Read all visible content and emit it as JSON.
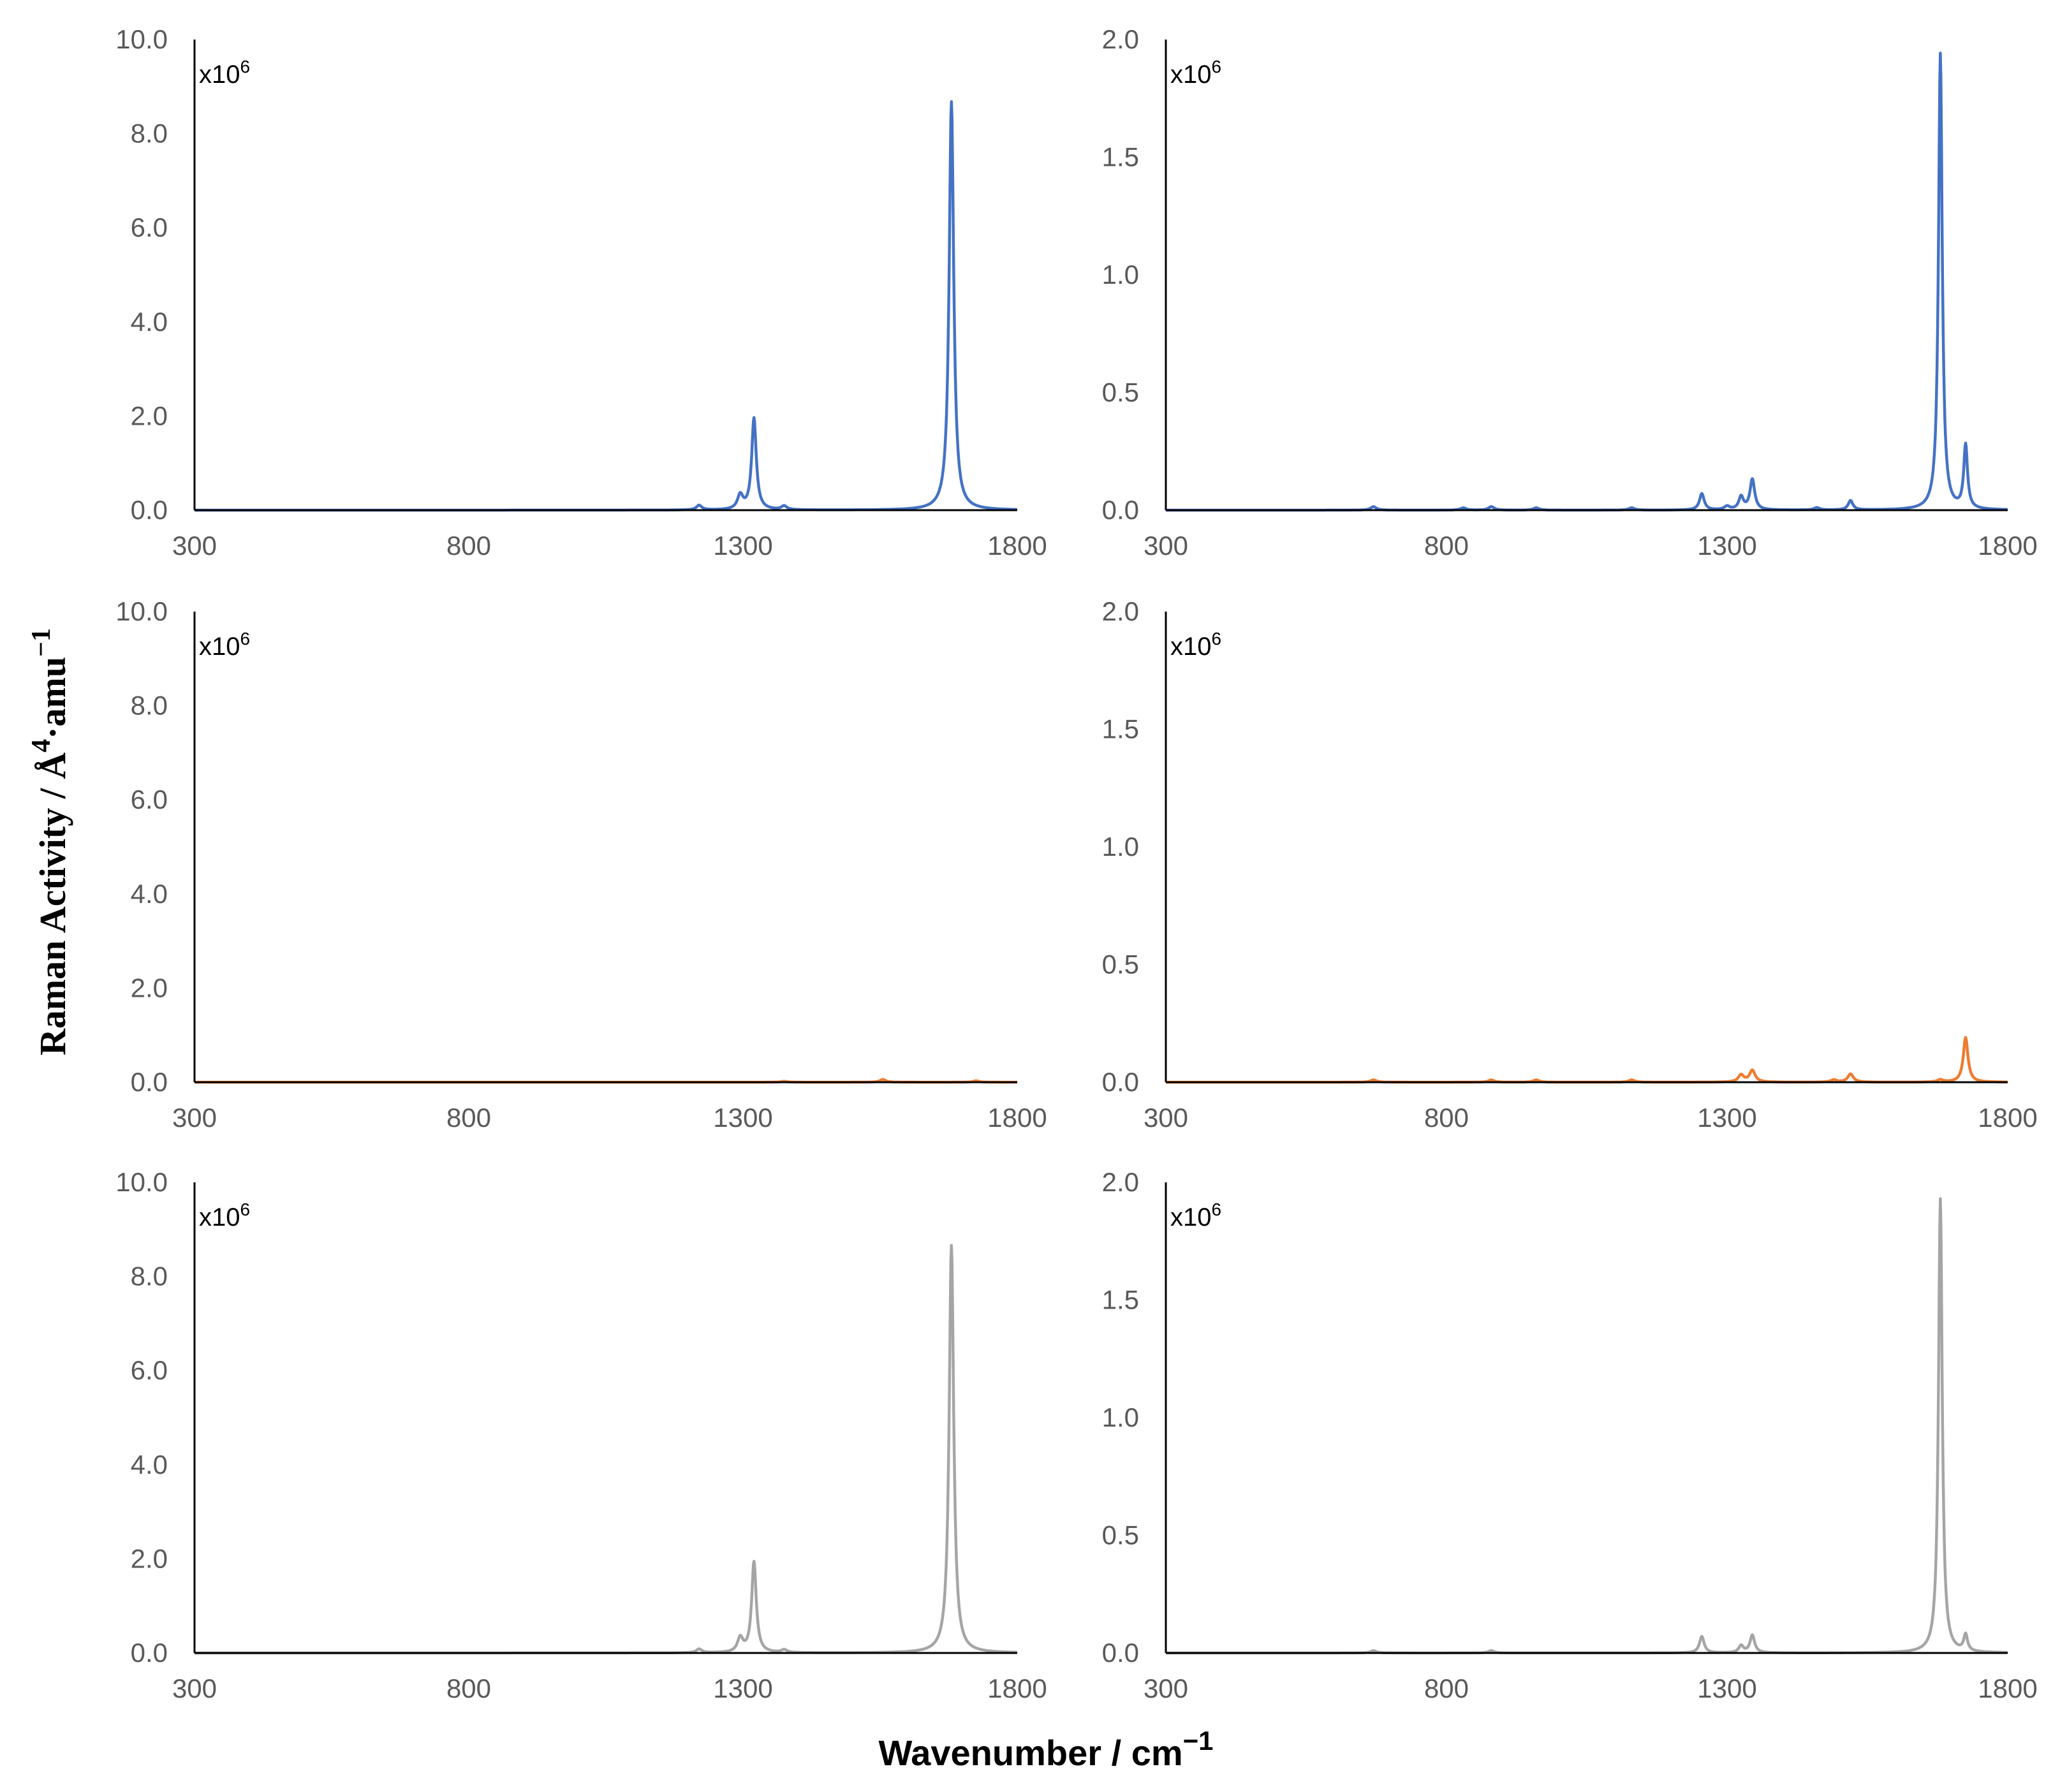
{
  "figure": {
    "xlabel": "Wavenumber / cm",
    "xlabel_exp": "−1",
    "ylabel": "Raman Activity / Å",
    "ylabel_exp1": "4",
    "ylabel_mid": "·amu",
    "ylabel_exp2": "−1",
    "multiplier_base": "x10",
    "multiplier_exp": "6"
  },
  "chart_data": [
    {
      "type": "line",
      "panel": "row1-left",
      "color": "#4472C4",
      "xlim": [
        300,
        1800
      ],
      "ylim": [
        0,
        10
      ],
      "x_ticks": [
        "300",
        "800",
        "1300",
        "1800"
      ],
      "y_ticks": [
        "0.0",
        "2.0",
        "4.0",
        "6.0",
        "8.0",
        "10.0"
      ],
      "scale_label": "x10^6",
      "peaks": [
        [
          1220,
          0.1,
          6
        ],
        [
          1295,
          0.3,
          6
        ],
        [
          1320,
          1.95,
          5
        ],
        [
          1375,
          0.08,
          6
        ],
        [
          1680,
          8.68,
          5
        ]
      ]
    },
    {
      "type": "line",
      "panel": "row1-right",
      "color": "#4472C4",
      "xlim": [
        300,
        1800
      ],
      "ylim": [
        0,
        2
      ],
      "x_ticks": [
        "300",
        "800",
        "1300",
        "1800"
      ],
      "y_ticks": [
        "0.0",
        "0.5",
        "1.0",
        "1.5",
        "2.0"
      ],
      "scale_label": "x10^6",
      "peaks": [
        [
          670,
          0.015,
          6
        ],
        [
          830,
          0.01,
          6
        ],
        [
          880,
          0.015,
          6
        ],
        [
          960,
          0.01,
          6
        ],
        [
          1130,
          0.01,
          6
        ],
        [
          1255,
          0.07,
          5
        ],
        [
          1300,
          0.015,
          6
        ],
        [
          1325,
          0.055,
          5
        ],
        [
          1345,
          0.13,
          5
        ],
        [
          1460,
          0.01,
          6
        ],
        [
          1520,
          0.04,
          5
        ],
        [
          1680,
          1.94,
          4
        ],
        [
          1725,
          0.27,
          4
        ]
      ]
    },
    {
      "type": "line",
      "panel": "row2-left",
      "color": "#ED7D31",
      "xlim": [
        300,
        1800
      ],
      "ylim": [
        0,
        10
      ],
      "x_ticks": [
        "300",
        "800",
        "1300",
        "1800"
      ],
      "y_ticks": [
        "0.0",
        "2.0",
        "4.0",
        "6.0",
        "8.0",
        "10.0"
      ],
      "scale_label": "x10^6",
      "peaks": [
        [
          1375,
          0.02,
          6
        ],
        [
          1555,
          0.06,
          6
        ],
        [
          1725,
          0.03,
          6
        ]
      ]
    },
    {
      "type": "line",
      "panel": "row2-right",
      "color": "#ED7D31",
      "xlim": [
        300,
        1800
      ],
      "ylim": [
        0,
        2
      ],
      "x_ticks": [
        "300",
        "800",
        "1300",
        "1800"
      ],
      "y_ticks": [
        "0.0",
        "0.5",
        "1.0",
        "1.5",
        "2.0"
      ],
      "scale_label": "x10^6",
      "peaks": [
        [
          670,
          0.01,
          6
        ],
        [
          880,
          0.01,
          6
        ],
        [
          960,
          0.01,
          6
        ],
        [
          1130,
          0.01,
          6
        ],
        [
          1325,
          0.03,
          6
        ],
        [
          1345,
          0.05,
          6
        ],
        [
          1490,
          0.01,
          6
        ],
        [
          1520,
          0.035,
          6
        ],
        [
          1680,
          0.01,
          6
        ],
        [
          1725,
          0.19,
          5
        ]
      ]
    },
    {
      "type": "line",
      "panel": "row3-left",
      "color": "#A5A5A5",
      "xlim": [
        300,
        1800
      ],
      "ylim": [
        0,
        10
      ],
      "x_ticks": [
        "300",
        "800",
        "1300",
        "1800"
      ],
      "y_ticks": [
        "0.0",
        "2.0",
        "4.0",
        "6.0",
        "8.0",
        "10.0"
      ],
      "scale_label": "x10^6",
      "peaks": [
        [
          1220,
          0.08,
          6
        ],
        [
          1295,
          0.3,
          6
        ],
        [
          1320,
          1.93,
          5
        ],
        [
          1375,
          0.06,
          6
        ],
        [
          1680,
          8.66,
          5
        ]
      ]
    },
    {
      "type": "line",
      "panel": "row3-right",
      "color": "#A5A5A5",
      "xlim": [
        300,
        1800
      ],
      "ylim": [
        0,
        2
      ],
      "x_ticks": [
        "300",
        "800",
        "1300",
        "1800"
      ],
      "y_ticks": [
        "0.0",
        "0.5",
        "1.0",
        "1.5",
        "2.0"
      ],
      "scale_label": "x10^6",
      "peaks": [
        [
          670,
          0.01,
          6
        ],
        [
          880,
          0.01,
          6
        ],
        [
          1255,
          0.07,
          5
        ],
        [
          1325,
          0.03,
          5
        ],
        [
          1345,
          0.075,
          5
        ],
        [
          1680,
          1.93,
          4
        ],
        [
          1725,
          0.07,
          4
        ]
      ]
    }
  ]
}
